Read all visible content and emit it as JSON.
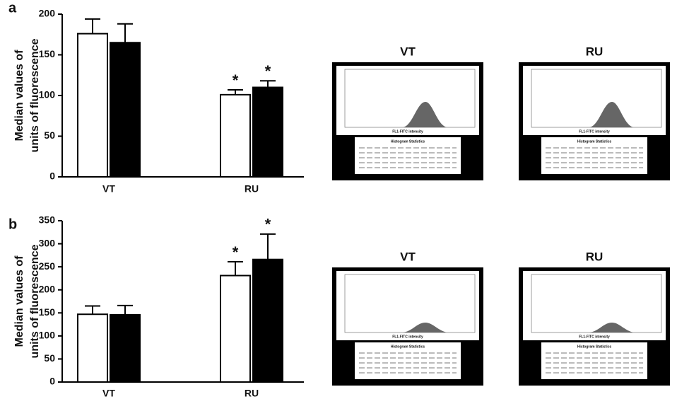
{
  "chart_data": [
    {
      "type": "bar",
      "label": "a",
      "ylabel": [
        "Median values of",
        "units of fluorescence"
      ],
      "categories": [
        "VT",
        "RU"
      ],
      "series": [
        {
          "color": "#ffffff",
          "values": [
            176,
            101
          ],
          "errors": [
            18,
            6
          ],
          "annotations": [
            null,
            "*"
          ]
        },
        {
          "color": "#000000",
          "values": [
            165,
            110
          ],
          "errors": [
            23,
            8
          ],
          "annotations": [
            null,
            "*"
          ]
        }
      ],
      "ylim": [
        0,
        200
      ],
      "yticks": [
        0,
        50,
        100,
        150,
        200
      ]
    },
    {
      "type": "bar",
      "label": "b",
      "ylabel": [
        "Median values of",
        "units of fluorescence"
      ],
      "categories": [
        "VT",
        "RU"
      ],
      "series": [
        {
          "color": "#ffffff",
          "values": [
            147,
            231
          ],
          "errors": [
            18,
            30
          ],
          "annotations": [
            null,
            "*"
          ]
        },
        {
          "color": "#000000",
          "values": [
            146,
            266
          ],
          "errors": [
            20,
            55
          ],
          "annotations": [
            null,
            "*"
          ]
        }
      ],
      "ylim": [
        0,
        350
      ],
      "yticks": [
        0,
        50,
        100,
        150,
        200,
        250,
        300,
        350
      ]
    }
  ],
  "histograms": [
    [
      {
        "title": "VT",
        "xlabel": "FL1-FITC intensity",
        "stats_title": "Histogram Statistics"
      },
      {
        "title": "RU",
        "xlabel": "FL1-FITC intensity",
        "stats_title": "Histogram Statistics"
      }
    ],
    [
      {
        "title": "VT",
        "xlabel": "FL1-FITC intensity",
        "stats_title": "Histogram Statistics"
      },
      {
        "title": "RU",
        "xlabel": "FL1-FITC intensity",
        "stats_title": "Histogram Statistics"
      }
    ]
  ]
}
